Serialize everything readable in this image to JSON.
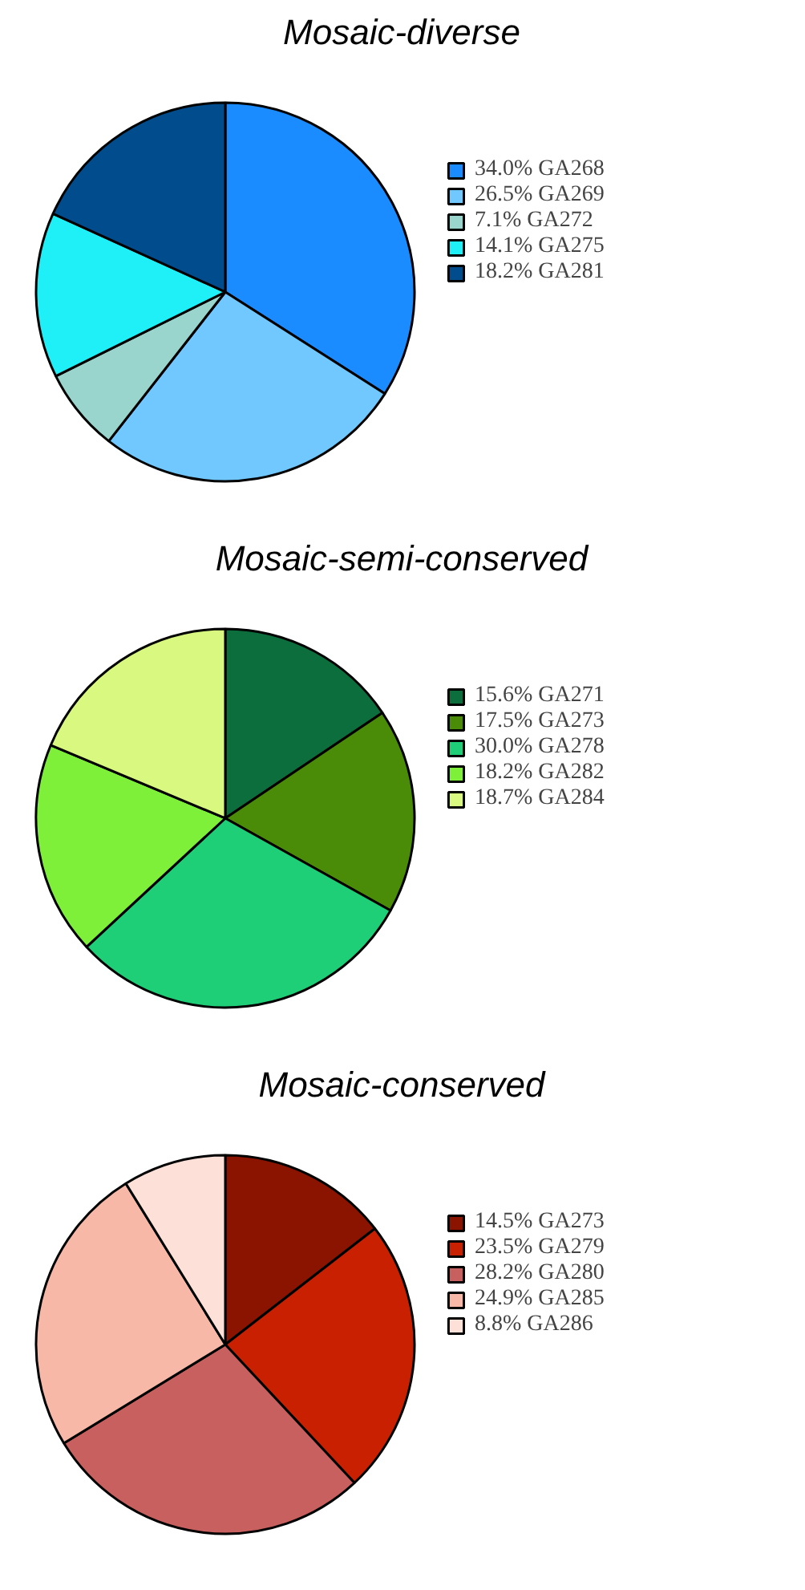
{
  "chart_data": [
    {
      "type": "pie",
      "title": "Mosaic-diverse",
      "categories": [
        "GA268",
        "GA269",
        "GA272",
        "GA275",
        "GA281"
      ],
      "values": [
        34.0,
        26.5,
        7.1,
        14.1,
        18.2
      ],
      "value_labels": [
        "34.0%",
        "26.5%",
        "7.1%",
        "14.1%",
        "18.2%"
      ],
      "colors": [
        "#1a8cff",
        "#70c8ff",
        "#99d5cc",
        "#1ff0f8",
        "#004c8c"
      ],
      "legend": "right"
    },
    {
      "type": "pie",
      "title": "Mosaic-semi-conserved",
      "categories": [
        "GA271",
        "GA273",
        "GA278",
        "GA282",
        "GA284"
      ],
      "values": [
        15.6,
        17.5,
        30.0,
        18.2,
        18.7
      ],
      "value_labels": [
        "15.6%",
        "17.5%",
        "30.0%",
        "18.2%",
        "18.7%"
      ],
      "colors": [
        "#0b6e3c",
        "#4a8c08",
        "#1ecf78",
        "#7ff03a",
        "#d8f880"
      ],
      "legend": "right"
    },
    {
      "type": "pie",
      "title": "Mosaic-conserved",
      "categories": [
        "GA273",
        "GA279",
        "GA280",
        "GA285",
        "GA286"
      ],
      "values": [
        14.5,
        23.5,
        28.2,
        24.9,
        8.8
      ],
      "value_labels": [
        "14.5%",
        "23.5%",
        "28.2%",
        "24.9%",
        "8.8%"
      ],
      "colors": [
        "#8a1400",
        "#c82000",
        "#c86060",
        "#f8b8a8",
        "#fde0d8"
      ],
      "legend": "right"
    }
  ]
}
